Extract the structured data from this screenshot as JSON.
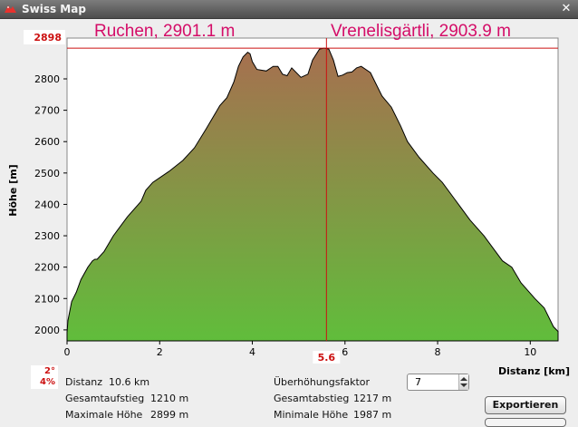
{
  "window": {
    "title": "Swiss Map",
    "close_symbol": "✕",
    "icon": "swiss-map-logo-icon"
  },
  "chart_data": {
    "type": "area",
    "ylabel": "Höhe [m]",
    "xlabel": "Distanz [km]",
    "xlim": [
      0,
      10.6
    ],
    "ylim": [
      1965,
      2930
    ],
    "x_ticks": [
      "0",
      "2",
      "4",
      "6",
      "8",
      "10"
    ],
    "y_ticks": [
      "2000",
      "2100",
      "2200",
      "2300",
      "2400",
      "2500",
      "2600",
      "2700",
      "2800"
    ],
    "grid": false,
    "colors": {
      "fill_top": "#a5714f",
      "fill_bottom": "#5cc23a",
      "outline": "#000000",
      "marker": "#cc1111",
      "annotation": "#d40d68"
    },
    "max_marker": {
      "y_value": 2898,
      "label": "2898"
    },
    "cursor": {
      "x_value": 5.6,
      "label": "5.6"
    },
    "annotations": [
      "Ruchen, 2901.1 m",
      "Vrenelisgärtli, 2903.9 m"
    ],
    "profile": {
      "x": [
        0,
        0.02,
        0.1,
        0.2,
        0.3,
        0.45,
        0.55,
        0.6,
        0.65,
        0.8,
        1.0,
        1.3,
        1.6,
        1.7,
        1.85,
        2.05,
        2.2,
        2.5,
        2.75,
        3.0,
        3.2,
        3.3,
        3.45,
        3.6,
        3.7,
        3.8,
        3.9,
        3.95,
        4.0,
        4.1,
        4.3,
        4.45,
        4.55,
        4.65,
        4.75,
        4.85,
        5.05,
        5.2,
        5.3,
        5.45,
        5.55,
        5.65,
        5.75,
        5.85,
        5.95,
        6.05,
        6.15,
        6.25,
        6.35,
        6.55,
        6.65,
        6.8,
        7.0,
        7.2,
        7.35,
        7.6,
        7.9,
        8.1,
        8.35,
        8.7,
        9.0,
        9.2,
        9.4,
        9.6,
        9.8,
        10.1,
        10.3,
        10.5,
        10.6
      ],
      "y": [
        1992,
        2030,
        2090,
        2120,
        2160,
        2200,
        2220,
        2225,
        2225,
        2250,
        2300,
        2360,
        2410,
        2445,
        2470,
        2490,
        2505,
        2540,
        2580,
        2640,
        2690,
        2715,
        2740,
        2790,
        2840,
        2870,
        2885,
        2880,
        2855,
        2830,
        2825,
        2840,
        2840,
        2815,
        2810,
        2835,
        2805,
        2815,
        2860,
        2895,
        2898,
        2895,
        2860,
        2808,
        2812,
        2820,
        2822,
        2835,
        2840,
        2820,
        2790,
        2745,
        2710,
        2650,
        2600,
        2550,
        2500,
        2470,
        2420,
        2350,
        2300,
        2260,
        2220,
        2200,
        2150,
        2100,
        2070,
        2010,
        1995
      ]
    }
  },
  "stats": {
    "distance_label": "Distanz",
    "distance_value": "10.6 km",
    "ascent_label": "Gesamtaufstieg",
    "ascent_value": "1210 m",
    "max_label": "Maximale Höhe",
    "max_value": "2899 m",
    "exaggeration_label": "Überhöhungsfaktor",
    "exaggeration_value": "7",
    "descent_label": "Gesamtabstieg",
    "descent_value": "1217 m",
    "min_label": "Minimale Höhe",
    "min_value": "1987 m"
  },
  "slope": {
    "degrees": "2°",
    "percent": "4%"
  },
  "buttons": {
    "export_label": "Exportieren"
  }
}
